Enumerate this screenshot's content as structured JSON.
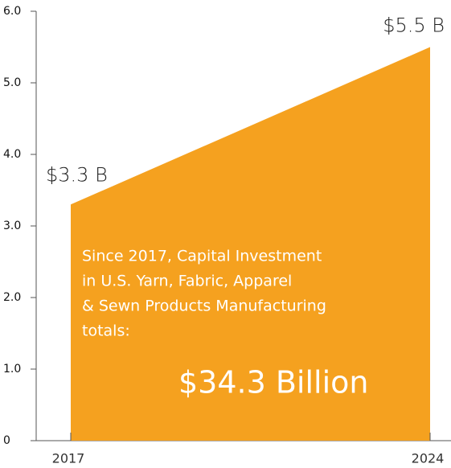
{
  "chart_data": {
    "type": "area",
    "x": [
      2017,
      2024
    ],
    "values": [
      3.3,
      5.5
    ],
    "value_labels": [
      "$3.3 B",
      "$5.5 B"
    ],
    "color": "#f5a11f",
    "xlim": [
      2017,
      2024
    ],
    "xticks": [
      2017,
      2024
    ],
    "ylim": [
      0,
      6
    ],
    "yticks": [
      0,
      {
        "value": 1,
        "label": "1.0"
      },
      {
        "value": 2,
        "label": "2.0"
      },
      {
        "value": 3,
        "label": "3.0"
      },
      {
        "value": 4,
        "label": "4.0"
      },
      {
        "value": 5,
        "label": "5.0"
      },
      {
        "value": 6,
        "label": "6.0"
      }
    ],
    "annotation": {
      "lines": [
        "Since 2017, Capital Investment",
        "in U.S. Yarn, Fabric, Apparel",
        "& Sewn Products Manufacturing",
        "totals:"
      ],
      "total": "$34.3 Billion"
    }
  }
}
